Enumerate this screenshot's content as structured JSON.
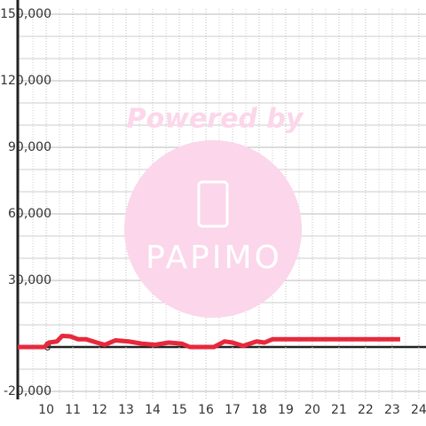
{
  "chart_data": {
    "type": "line",
    "watermark": {
      "line1": "Powered by",
      "line2": "PAPIMO"
    },
    "x": [
      8.93,
      9.93,
      10.1,
      10.4,
      10.6,
      10.9,
      11.2,
      11.5,
      11.9,
      12.2,
      12.6,
      13.1,
      13.6,
      14.1,
      14.6,
      15.1,
      15.4,
      15.8,
      16.3,
      16.7,
      17.0,
      17.4,
      17.9,
      18.2,
      18.5,
      19.0,
      20,
      21,
      22,
      22.7,
      23.3
    ],
    "series": [
      {
        "color": "#e8283c",
        "values": [
          0,
          0,
          2000,
          2500,
          5000,
          4800,
          3500,
          3500,
          2000,
          1000,
          3000,
          2500,
          1500,
          1000,
          2000,
          1500,
          0,
          0,
          0,
          2500,
          2000,
          500,
          2500,
          2000,
          3500,
          3500,
          3500,
          3500,
          3500,
          3500,
          3500
        ]
      }
    ],
    "xlim": [
      8.93,
      24.27
    ],
    "xticks": [
      10,
      11,
      12,
      13,
      14,
      15,
      16,
      17,
      18,
      19,
      20,
      21,
      22,
      23,
      24
    ],
    "xminor": [
      9.5,
      10.5,
      11.5,
      12.5,
      13.5,
      14.5,
      15.5,
      16.5,
      17.5,
      18.5,
      19.5,
      20.5,
      21.5,
      22.5,
      23.5
    ],
    "ylim": [
      -20000,
      150000
    ],
    "yticks": [
      {
        "value": -20000,
        "label": "-20,000"
      },
      0,
      {
        "value": 30000,
        "label": "30,000"
      },
      {
        "value": 60000,
        "label": "60,000"
      },
      {
        "value": 90000,
        "label": "90,000"
      },
      {
        "value": 120000,
        "label": "120,000"
      },
      {
        "value": 150000,
        "label": "150,000"
      }
    ],
    "yminor": [
      -10000,
      10000,
      20000,
      40000,
      50000,
      70000,
      80000,
      100000,
      110000,
      130000,
      140000
    ],
    "grid": true
  }
}
